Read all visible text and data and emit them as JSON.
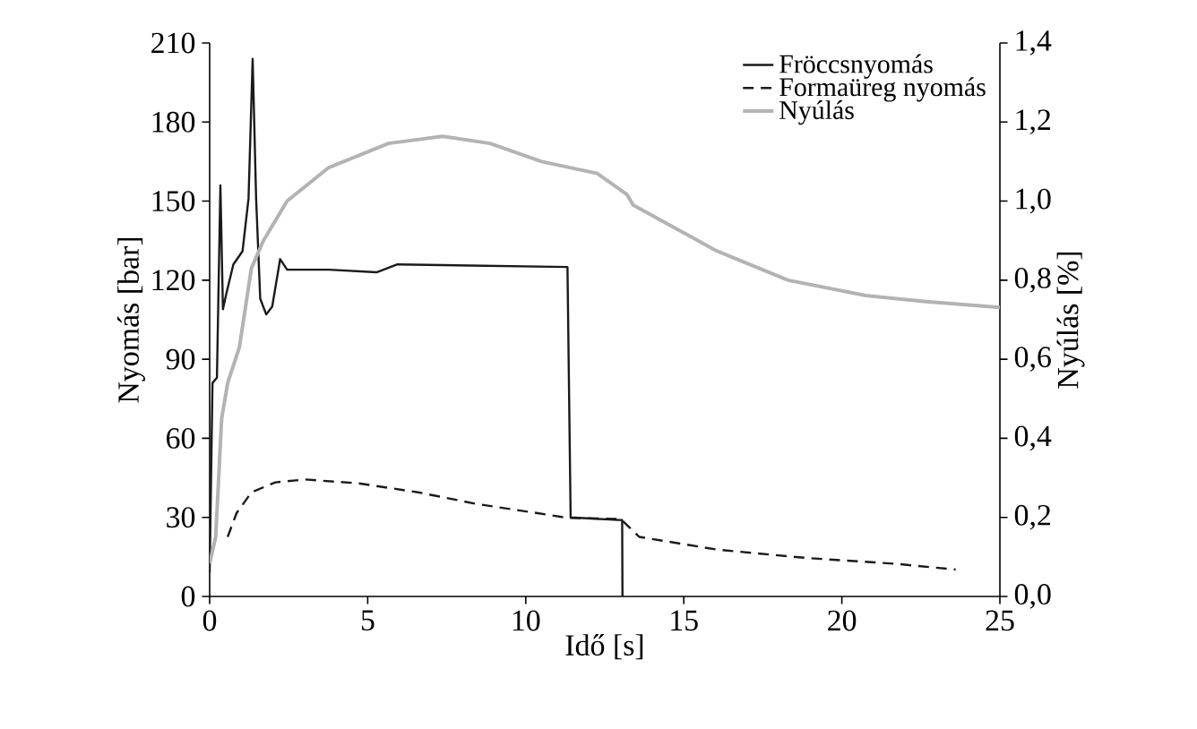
{
  "chart_data": {
    "type": "line",
    "xlabel": "Idő [s]",
    "ylabel": "Nyomás [bar]",
    "y2label": "Nyúlás [%]",
    "xlim": [
      0,
      25
    ],
    "xticks": [
      0,
      5,
      10,
      15,
      20,
      25
    ],
    "ylim": [
      0,
      210
    ],
    "yticks": [
      0,
      30,
      60,
      90,
      120,
      150,
      180,
      210
    ],
    "y2lim": [
      0,
      1.4
    ],
    "y2ticks": [
      {
        "value": 0,
        "label": "0,0"
      },
      {
        "value": 0.2,
        "label": "0,2"
      },
      {
        "value": 0.4,
        "label": "0,4"
      },
      {
        "value": 0.6,
        "label": "0,6"
      },
      {
        "value": 0.8,
        "label": "0,8"
      },
      {
        "value": 1.0,
        "label": "1,0"
      },
      {
        "value": 1.2,
        "label": "1,2"
      },
      {
        "value": 1.4,
        "label": "1,4"
      }
    ],
    "legend": "top right",
    "grid": false,
    "marker": "none",
    "series": [
      {
        "name": "Fröccsnyomás",
        "color": "#1a1a1a",
        "line_style": "solid",
        "x": [
          0,
          0.09,
          0.23,
          0.34,
          0.42,
          0.53,
          0.75,
          1.04,
          1.23,
          1.36,
          1.47,
          1.6,
          1.79,
          1.98,
          2.23,
          2.45,
          3.77,
          5.28,
          5.94,
          11.32,
          11.42,
          12.93,
          13.05,
          13.06
        ],
        "values": [
          9,
          81,
          83,
          156,
          109,
          115,
          126,
          131,
          151,
          204,
          151,
          113,
          107,
          110,
          128,
          124,
          124,
          123,
          126,
          125,
          30,
          29,
          29,
          0
        ]
      },
      {
        "name": "Formaüreg nyomás",
        "color": "#1a1a1a",
        "line_style": "dashed",
        "x": [
          0.57,
          0.85,
          1.32,
          2.08,
          3.02,
          4.72,
          6.6,
          8.49,
          10.38,
          11.32,
          13.0,
          13.59,
          16.04,
          18.88,
          21.7,
          23.6
        ],
        "values": [
          22.6,
          31.6,
          39.5,
          43.3,
          44.4,
          42.9,
          39.5,
          35,
          31.6,
          29.8,
          29.4,
          22.6,
          17.8,
          14.6,
          12.4,
          10.2
        ]
      },
      {
        "name": "Nyúlás",
        "color": "#b3b3b3",
        "line_style": "solid",
        "axis": "y2",
        "x": [
          0,
          0.19,
          0.38,
          0.57,
          0.94,
          1.32,
          1.7,
          2.45,
          3.77,
          5.66,
          7.36,
          8.87,
          10.5,
          12.26,
          13.2,
          13.4,
          16.04,
          18.3,
          20.76,
          22.66,
          25
        ],
        "values": [
          0.083,
          0.15,
          0.45,
          0.54,
          0.63,
          0.83,
          0.9,
          1.0,
          1.085,
          1.146,
          1.164,
          1.146,
          1.1,
          1.07,
          1.017,
          0.99,
          0.874,
          0.8,
          0.761,
          0.746,
          0.731
        ]
      }
    ]
  }
}
